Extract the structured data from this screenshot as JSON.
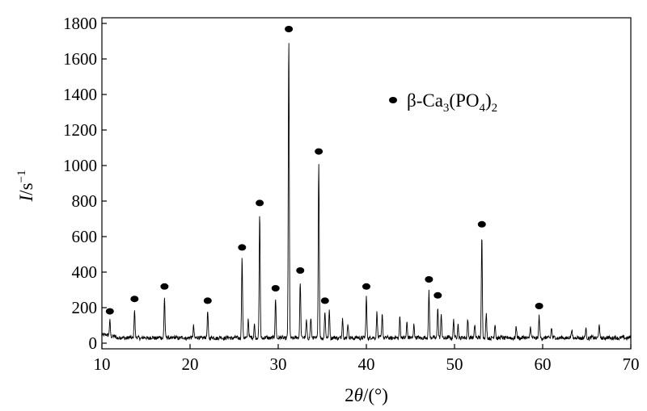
{
  "chart_data": {
    "type": "line",
    "xlabel": {
      "prefix": "2",
      "variable": "θ",
      "suffix": "/(°)"
    },
    "ylabel": {
      "variable": "I",
      "unit": "/s",
      "exponent": "−1"
    },
    "xlim": [
      10,
      70
    ],
    "ylim": [
      0,
      1800
    ],
    "xticks": [
      10,
      20,
      30,
      40,
      50,
      60,
      70
    ],
    "yticks": [
      0,
      200,
      400,
      600,
      800,
      1000,
      1200,
      1400,
      1600,
      1800
    ],
    "grid": false,
    "legend": {
      "placement": "top-right",
      "marker": "filled-circle",
      "label": {
        "a": "β-Ca",
        "b": "3",
        "c": "(PO",
        "d": "4",
        "e": ")",
        "f": "2"
      }
    },
    "baseline": 30,
    "peaks": [
      {
        "x": 10.9,
        "y": 90,
        "marked": true
      },
      {
        "x": 13.7,
        "y": 160,
        "marked": true
      },
      {
        "x": 17.1,
        "y": 230,
        "marked": true
      },
      {
        "x": 20.4,
        "y": 70,
        "marked": false
      },
      {
        "x": 22.0,
        "y": 150,
        "marked": true
      },
      {
        "x": 25.9,
        "y": 450,
        "marked": true
      },
      {
        "x": 26.6,
        "y": 110,
        "marked": false
      },
      {
        "x": 27.3,
        "y": 80,
        "marked": false
      },
      {
        "x": 27.9,
        "y": 700,
        "marked": true
      },
      {
        "x": 29.7,
        "y": 220,
        "marked": true
      },
      {
        "x": 31.2,
        "y": 1680,
        "marked": true
      },
      {
        "x": 32.5,
        "y": 320,
        "marked": true
      },
      {
        "x": 33.2,
        "y": 100,
        "marked": false
      },
      {
        "x": 33.7,
        "y": 110,
        "marked": false
      },
      {
        "x": 34.6,
        "y": 990,
        "marked": true
      },
      {
        "x": 35.3,
        "y": 150,
        "marked": true
      },
      {
        "x": 35.8,
        "y": 160,
        "marked": false
      },
      {
        "x": 37.3,
        "y": 110,
        "marked": false
      },
      {
        "x": 37.9,
        "y": 80,
        "marked": false
      },
      {
        "x": 40.0,
        "y": 230,
        "marked": true
      },
      {
        "x": 41.2,
        "y": 150,
        "marked": false
      },
      {
        "x": 41.8,
        "y": 140,
        "marked": false
      },
      {
        "x": 43.8,
        "y": 120,
        "marked": false
      },
      {
        "x": 44.6,
        "y": 90,
        "marked": false
      },
      {
        "x": 45.4,
        "y": 80,
        "marked": false
      },
      {
        "x": 47.1,
        "y": 270,
        "marked": true
      },
      {
        "x": 48.1,
        "y": 180,
        "marked": true
      },
      {
        "x": 48.5,
        "y": 130,
        "marked": false
      },
      {
        "x": 49.9,
        "y": 100,
        "marked": false
      },
      {
        "x": 50.4,
        "y": 80,
        "marked": false
      },
      {
        "x": 51.5,
        "y": 110,
        "marked": false
      },
      {
        "x": 52.3,
        "y": 80,
        "marked": false
      },
      {
        "x": 53.1,
        "y": 580,
        "marked": true
      },
      {
        "x": 53.6,
        "y": 130,
        "marked": false
      },
      {
        "x": 54.6,
        "y": 80,
        "marked": false
      },
      {
        "x": 57.0,
        "y": 60,
        "marked": false
      },
      {
        "x": 58.6,
        "y": 60,
        "marked": false
      },
      {
        "x": 59.6,
        "y": 120,
        "marked": true
      },
      {
        "x": 61.0,
        "y": 60,
        "marked": false
      },
      {
        "x": 63.3,
        "y": 50,
        "marked": false
      },
      {
        "x": 64.9,
        "y": 50,
        "marked": false
      },
      {
        "x": 66.4,
        "y": 70,
        "marked": false
      }
    ]
  }
}
